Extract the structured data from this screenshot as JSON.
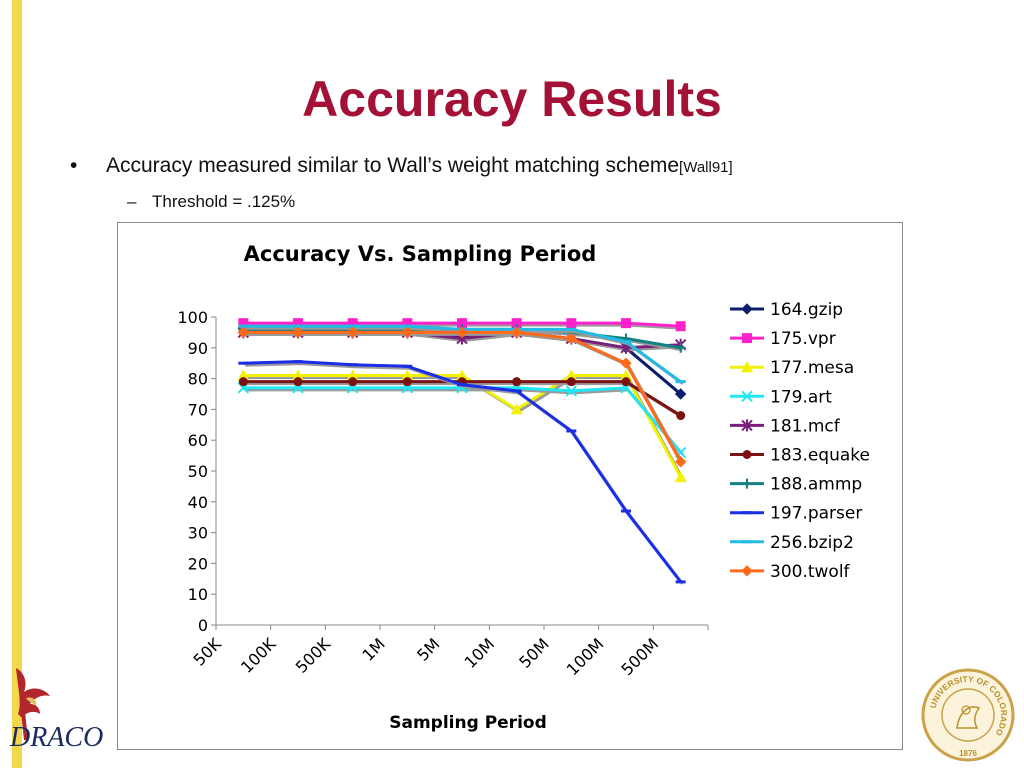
{
  "slide": {
    "title": "Accuracy Results",
    "bullet": "Accuracy measured similar to Wall’s weight matching scheme",
    "bullet_ref": "[Wall91]",
    "sub_bullet": "Threshold = .125%",
    "bullet_marker": "•",
    "sub_bullet_marker": "–"
  },
  "logo": {
    "text": "DRACO",
    "seal_text": "UNIVERSITY OF COLORADO",
    "seal_year": "1876"
  },
  "chart_data": {
    "type": "line",
    "title": "Accuracy Vs. Sampling Period",
    "xlabel": "Sampling Period",
    "ylabel": "",
    "categories": [
      "50K",
      "100K",
      "500K",
      "1M",
      "5M",
      "10M",
      "50M",
      "100M",
      "500M"
    ],
    "ylim": [
      0,
      100
    ],
    "yticks": [
      0,
      10,
      20,
      30,
      40,
      50,
      60,
      70,
      80,
      90,
      100
    ],
    "grid": false,
    "legend": "right",
    "series": [
      {
        "name": "164.gzip",
        "color": "#0b1e6e",
        "marker": "diamond",
        "values": [
          95,
          95,
          95,
          95,
          94,
          95,
          93,
          90,
          75
        ]
      },
      {
        "name": "175.vpr",
        "color": "#ff22cc",
        "marker": "square",
        "values": [
          98,
          98,
          98,
          98,
          98,
          98,
          98,
          98,
          97
        ]
      },
      {
        "name": "177.mesa",
        "color": "#f2f200",
        "marker": "triangle",
        "values": [
          81,
          81,
          81,
          81,
          81,
          70,
          81,
          81,
          48
        ]
      },
      {
        "name": "179.art",
        "color": "#22e6f2",
        "marker": "x",
        "values": [
          77,
          77,
          77,
          77,
          77,
          77,
          76,
          77,
          56
        ]
      },
      {
        "name": "181.mcf",
        "color": "#7a1f7a",
        "marker": "star",
        "values": [
          95,
          95,
          95,
          95,
          93,
          95,
          93,
          90,
          91
        ]
      },
      {
        "name": "183.equake",
        "color": "#7a1212",
        "marker": "circle",
        "values": [
          79,
          79,
          79,
          79,
          79,
          79,
          79,
          79,
          68
        ]
      },
      {
        "name": "188.ammp",
        "color": "#138080",
        "marker": "plus",
        "values": [
          96,
          96,
          96,
          96,
          96,
          96,
          95,
          93,
          90
        ]
      },
      {
        "name": "197.parser",
        "color": "#1a2ee6",
        "marker": "dash",
        "values": [
          85,
          85.5,
          84.5,
          84,
          78,
          76,
          63,
          37,
          14
        ]
      },
      {
        "name": "256.bzip2",
        "color": "#22bbe6",
        "marker": "dash",
        "values": [
          97,
          97,
          97,
          97,
          96,
          96,
          96,
          92,
          79
        ]
      },
      {
        "name": "300.twolf",
        "color": "#ff6a1a",
        "marker": "diamond",
        "values": [
          95,
          95,
          95,
          95,
          95,
          95,
          93,
          85,
          53
        ]
      }
    ]
  }
}
